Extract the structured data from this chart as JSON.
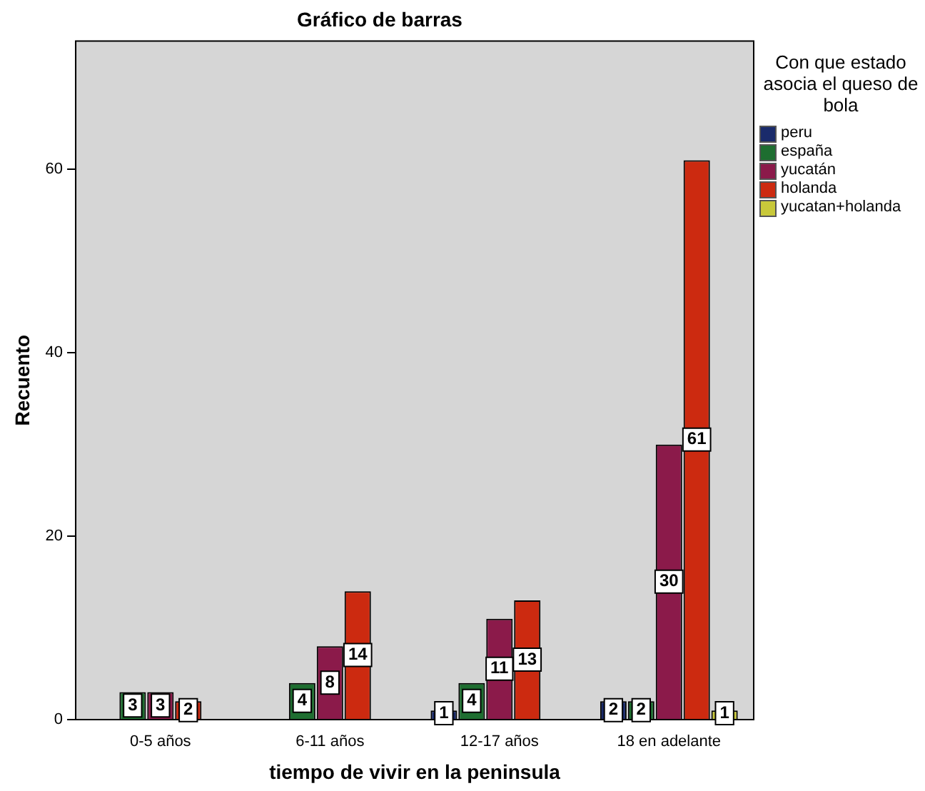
{
  "chart_data": {
    "type": "bar",
    "title": "Gráfico de barras",
    "xlabel": "tiempo de vivir en la peninsula",
    "ylabel": "Recuento",
    "legend_title": "Con que estado asocia el queso de bola",
    "categories": [
      "0-5 años",
      "6-11 años",
      "12-17 años",
      "18 en adelante"
    ],
    "series": [
      {
        "name": "peru",
        "color": "#1a2b6b",
        "values": [
          0,
          0,
          1,
          2
        ],
        "value_labels": [
          null,
          null,
          "1",
          "2"
        ]
      },
      {
        "name": "españa",
        "color": "#1e6e30",
        "values": [
          3,
          4,
          4,
          2
        ],
        "value_labels": [
          "3",
          "4",
          "4",
          "2"
        ]
      },
      {
        "name": "yucatán",
        "color": "#8b1a4a",
        "values": [
          3,
          8,
          11,
          30
        ],
        "value_labels": [
          "3",
          "8",
          "11",
          "30"
        ]
      },
      {
        "name": "holanda",
        "color": "#cc2a10",
        "values": [
          2,
          14,
          13,
          61
        ],
        "value_labels": [
          "2",
          "14",
          "13",
          "61"
        ]
      },
      {
        "name": "yucatan+holanda",
        "color": "#c8c83a",
        "values": [
          0,
          0,
          0,
          1
        ],
        "value_labels": [
          null,
          null,
          null,
          "1"
        ]
      }
    ],
    "ylim": [
      0,
      74
    ],
    "yticks": [
      0,
      20,
      40,
      60
    ],
    "grid": false,
    "legend": "right"
  }
}
